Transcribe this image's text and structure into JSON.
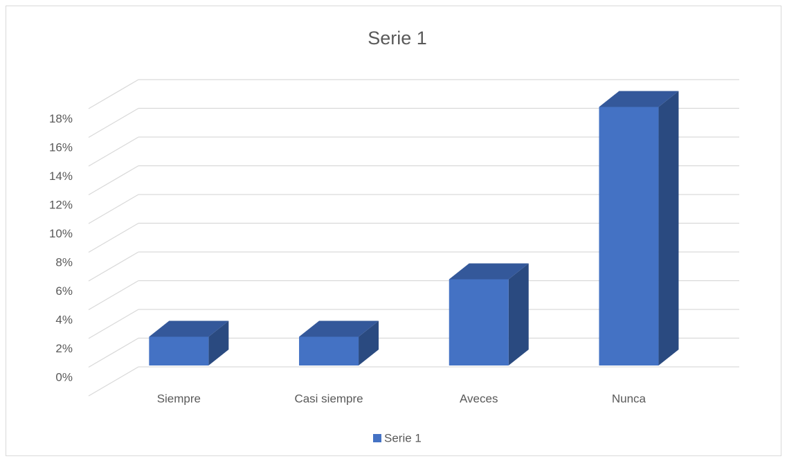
{
  "chart_data": {
    "type": "bar3d",
    "title": "Serie 1",
    "categories": [
      "Siempre",
      "Casi siempre",
      "Aveces",
      "Nunca"
    ],
    "series": [
      {
        "name": "Serie 1",
        "color": "#4472c4",
        "values": [
          2,
          2,
          6,
          18
        ]
      }
    ],
    "ylim": [
      0,
      20
    ],
    "yticks": [
      {
        "value": 0,
        "label": "0%"
      },
      {
        "value": 2,
        "label": "2%"
      },
      {
        "value": 4,
        "label": "4%"
      },
      {
        "value": 6,
        "label": "6%"
      },
      {
        "value": 8,
        "label": "8%"
      },
      {
        "value": 10,
        "label": "10%"
      },
      {
        "value": 12,
        "label": "12%"
      },
      {
        "value": 14,
        "label": "14%"
      },
      {
        "value": 16,
        "label": "16%"
      },
      {
        "value": 18,
        "label": "18%"
      }
    ],
    "grid": true,
    "legend": "bottom"
  }
}
